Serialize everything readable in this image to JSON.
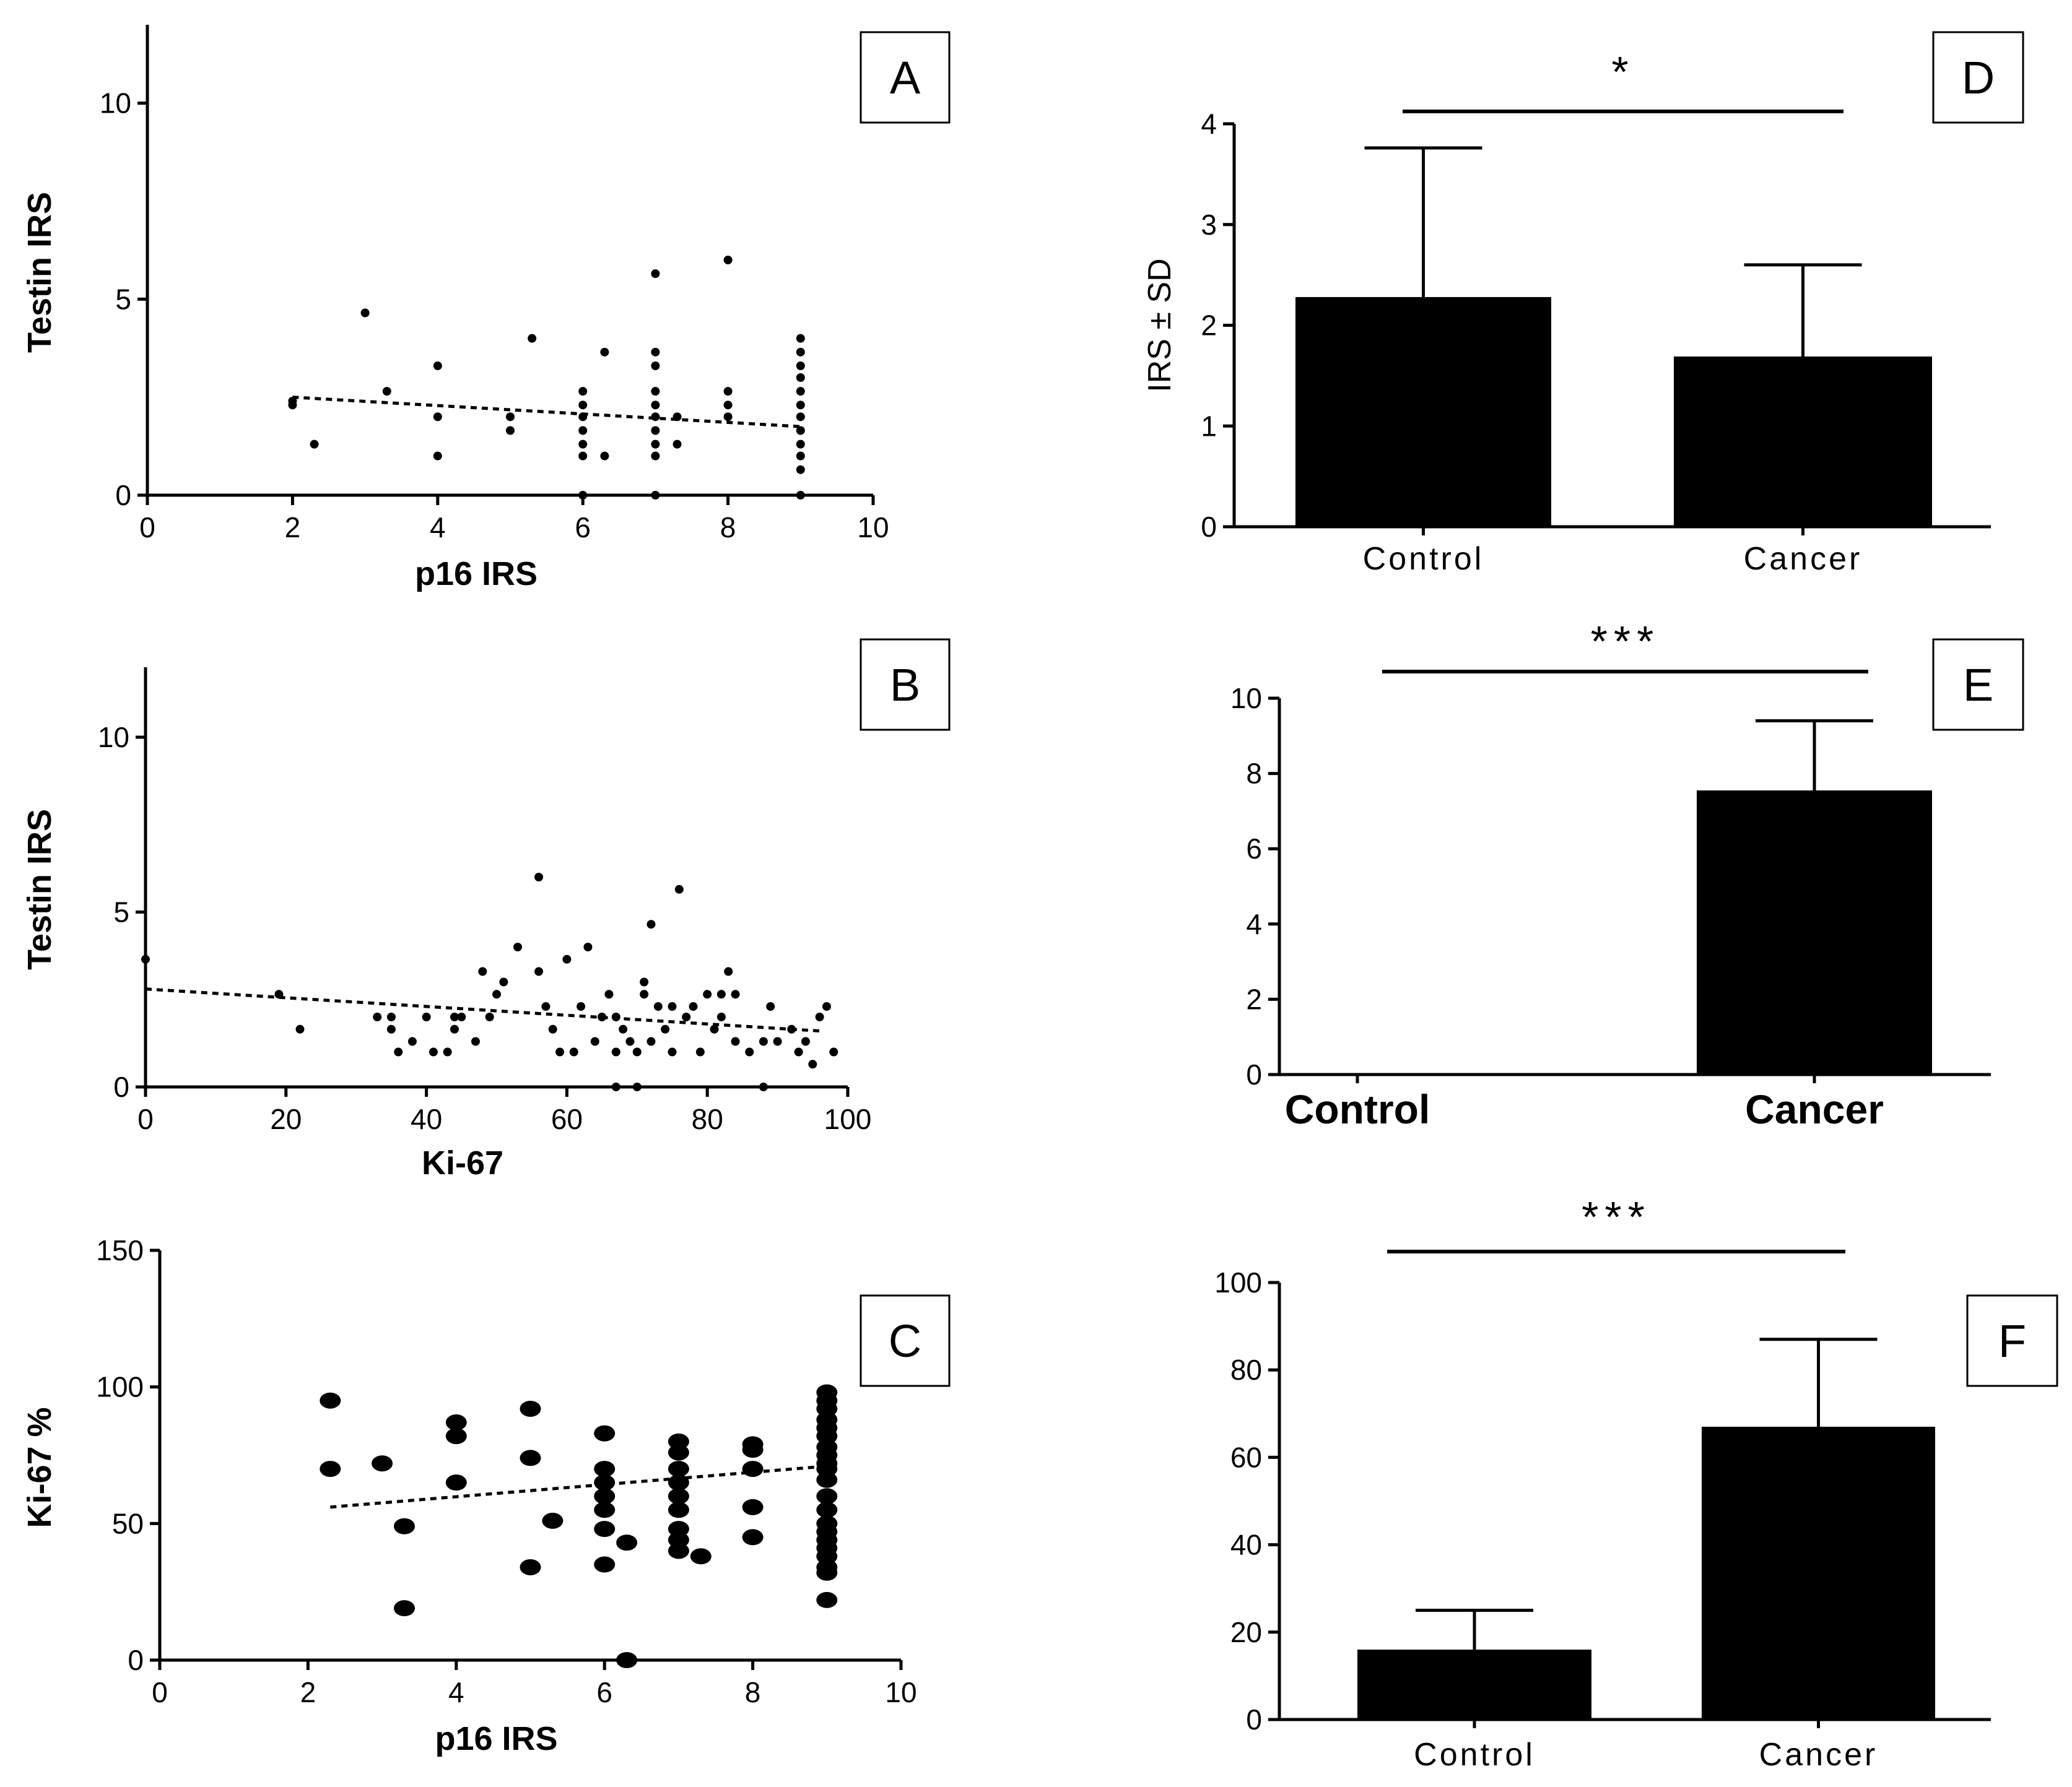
{
  "chart_data": [
    {
      "id": "A",
      "type": "scatter",
      "panel_label": "A",
      "xlabel": "p16 IRS",
      "ylabel": "Testin IRS",
      "xlim": [
        0,
        10
      ],
      "ylim": [
        0,
        12
      ],
      "xticks": [
        0,
        2,
        4,
        6,
        8,
        10
      ],
      "yticks": [
        0,
        5,
        10
      ],
      "trendline": [
        [
          2,
          2.5
        ],
        [
          9,
          1.75
        ]
      ],
      "points": [
        [
          2,
          2.3
        ],
        [
          2,
          2.4
        ],
        [
          2.3,
          1.3
        ],
        [
          3,
          4.65
        ],
        [
          3.3,
          2.65
        ],
        [
          4,
          3.3
        ],
        [
          4,
          2.0
        ],
        [
          4,
          1.0
        ],
        [
          5,
          1.65
        ],
        [
          5,
          2.0
        ],
        [
          5.3,
          4.0
        ],
        [
          6,
          2.65
        ],
        [
          6,
          2.3
        ],
        [
          6,
          2.0
        ],
        [
          6,
          1.65
        ],
        [
          6,
          1.3
        ],
        [
          6,
          1.0
        ],
        [
          6,
          0.0
        ],
        [
          6.3,
          3.65
        ],
        [
          6.3,
          1.0
        ],
        [
          7,
          5.65
        ],
        [
          7,
          3.65
        ],
        [
          7,
          3.3
        ],
        [
          7,
          2.65
        ],
        [
          7,
          2.3
        ],
        [
          7,
          2.0
        ],
        [
          7,
          1.65
        ],
        [
          7,
          1.3
        ],
        [
          7,
          1.0
        ],
        [
          7,
          0.0
        ],
        [
          7.3,
          2.0
        ],
        [
          7.3,
          1.3
        ],
        [
          8,
          6.0
        ],
        [
          8,
          2.65
        ],
        [
          8,
          2.3
        ],
        [
          8,
          2.0
        ],
        [
          9,
          4.0
        ],
        [
          9,
          3.65
        ],
        [
          9,
          3.3
        ],
        [
          9,
          3.0
        ],
        [
          9,
          2.65
        ],
        [
          9,
          2.3
        ],
        [
          9,
          2.0
        ],
        [
          9,
          1.65
        ],
        [
          9,
          1.3
        ],
        [
          9,
          1.0
        ],
        [
          9,
          0.65
        ],
        [
          9,
          0.0
        ]
      ]
    },
    {
      "id": "B",
      "type": "scatter",
      "panel_label": "B",
      "xlabel": "Ki-67",
      "ylabel": "Testin IRS",
      "xlim": [
        0,
        100
      ],
      "ylim": [
        0,
        12
      ],
      "xticks": [
        0,
        20,
        40,
        60,
        80,
        100
      ],
      "yticks": [
        0,
        5,
        10
      ],
      "trendline": [
        [
          0,
          2.8
        ],
        [
          96,
          1.6
        ]
      ],
      "points": [
        [
          0,
          3.65
        ],
        [
          19,
          2.65
        ],
        [
          22,
          1.65
        ],
        [
          33,
          2.0
        ],
        [
          35,
          2.0
        ],
        [
          35,
          1.65
        ],
        [
          36,
          1.0
        ],
        [
          38,
          1.3
        ],
        [
          40,
          2.0
        ],
        [
          41,
          1.0
        ],
        [
          43,
          1.0
        ],
        [
          44,
          2.0
        ],
        [
          44,
          1.65
        ],
        [
          45,
          2.0
        ],
        [
          47,
          1.3
        ],
        [
          48,
          3.3
        ],
        [
          49,
          2.0
        ],
        [
          50,
          2.65
        ],
        [
          51,
          3.0
        ],
        [
          53,
          4.0
        ],
        [
          56,
          6.0
        ],
        [
          56,
          3.3
        ],
        [
          57,
          2.3
        ],
        [
          58,
          1.65
        ],
        [
          59,
          1.0
        ],
        [
          60,
          3.65
        ],
        [
          61,
          1.0
        ],
        [
          62,
          2.3
        ],
        [
          63,
          4.0
        ],
        [
          64,
          1.3
        ],
        [
          65,
          2.0
        ],
        [
          66,
          2.65
        ],
        [
          67,
          2.0
        ],
        [
          67,
          1.0
        ],
        [
          67,
          0.0
        ],
        [
          68,
          1.65
        ],
        [
          69,
          1.3
        ],
        [
          70,
          1.0
        ],
        [
          70,
          0.0
        ],
        [
          71,
          2.65
        ],
        [
          71,
          3.0
        ],
        [
          72,
          4.65
        ],
        [
          72,
          1.3
        ],
        [
          73,
          2.3
        ],
        [
          74,
          1.65
        ],
        [
          75,
          2.3
        ],
        [
          75,
          1.0
        ],
        [
          76,
          5.65
        ],
        [
          77,
          2.0
        ],
        [
          78,
          2.3
        ],
        [
          79,
          1.0
        ],
        [
          80,
          2.65
        ],
        [
          81,
          1.65
        ],
        [
          82,
          2.65
        ],
        [
          82,
          2.0
        ],
        [
          83,
          3.3
        ],
        [
          84,
          2.65
        ],
        [
          84,
          1.3
        ],
        [
          86,
          1.0
        ],
        [
          88,
          1.3
        ],
        [
          88,
          0.0
        ],
        [
          89,
          2.3
        ],
        [
          90,
          1.3
        ],
        [
          92,
          1.65
        ],
        [
          93,
          1.0
        ],
        [
          94,
          1.3
        ],
        [
          95,
          0.65
        ],
        [
          96,
          2.0
        ],
        [
          97,
          2.3
        ],
        [
          98,
          1.0
        ]
      ]
    },
    {
      "id": "C",
      "type": "scatter",
      "panel_label": "C",
      "xlabel": "p16 IRS",
      "ylabel": "Ki-67 %",
      "xlim": [
        0,
        10
      ],
      "ylim": [
        0,
        150
      ],
      "xticks": [
        0,
        2,
        4,
        6,
        8,
        10
      ],
      "yticks": [
        0,
        50,
        100,
        150
      ],
      "trendline": [
        [
          2.3,
          56
        ],
        [
          9,
          71
        ]
      ],
      "points": [
        [
          2.3,
          95
        ],
        [
          2.3,
          70
        ],
        [
          3,
          72
        ],
        [
          3.3,
          49
        ],
        [
          3.3,
          19
        ],
        [
          4,
          87
        ],
        [
          4,
          82
        ],
        [
          4,
          65
        ],
        [
          5,
          92
        ],
        [
          5,
          74
        ],
        [
          5,
          34
        ],
        [
          5.3,
          51
        ],
        [
          6,
          83
        ],
        [
          6,
          70
        ],
        [
          6,
          65
        ],
        [
          6,
          60
        ],
        [
          6,
          55
        ],
        [
          6,
          48
        ],
        [
          6,
          35
        ],
        [
          6.3,
          43
        ],
        [
          6.3,
          0
        ],
        [
          7,
          80
        ],
        [
          7,
          76
        ],
        [
          7,
          70
        ],
        [
          7,
          65
        ],
        [
          7,
          60
        ],
        [
          7,
          55
        ],
        [
          7,
          48
        ],
        [
          7,
          44
        ],
        [
          7,
          40
        ],
        [
          7.3,
          38
        ],
        [
          8,
          79
        ],
        [
          8,
          77
        ],
        [
          8,
          70
        ],
        [
          8,
          56
        ],
        [
          8,
          45
        ],
        [
          9,
          98
        ],
        [
          9,
          95
        ],
        [
          9,
          92
        ],
        [
          9,
          88
        ],
        [
          9,
          85
        ],
        [
          9,
          82
        ],
        [
          9,
          78
        ],
        [
          9,
          75
        ],
        [
          9,
          72
        ],
        [
          9,
          70
        ],
        [
          9,
          66
        ],
        [
          9,
          60
        ],
        [
          9,
          55
        ],
        [
          9,
          50
        ],
        [
          9,
          47
        ],
        [
          9,
          44
        ],
        [
          9,
          41
        ],
        [
          9,
          38
        ],
        [
          9,
          34
        ],
        [
          9,
          32
        ],
        [
          9,
          22
        ]
      ]
    },
    {
      "id": "D",
      "type": "bar",
      "panel_label": "D",
      "ylabel": "IRS ± SD",
      "categories": [
        "Control",
        "Cancer"
      ],
      "values": [
        2.28,
        1.69
      ],
      "errors": [
        1.48,
        0.91
      ],
      "ylim": [
        0,
        4
      ],
      "yticks": [
        0,
        1,
        2,
        3,
        4
      ],
      "significance": "*"
    },
    {
      "id": "E",
      "type": "bar",
      "panel_label": "E",
      "ylabel": "",
      "categories": [
        "Control",
        "Cancer"
      ],
      "values": [
        0,
        7.55
      ],
      "errors": [
        0,
        1.85
      ],
      "ylim": [
        0,
        10
      ],
      "yticks": [
        0,
        2,
        4,
        6,
        8,
        10
      ],
      "significance": "***"
    },
    {
      "id": "F",
      "type": "bar",
      "panel_label": "F",
      "ylabel": "",
      "categories": [
        "Control",
        "Cancer"
      ],
      "values": [
        16,
        67
      ],
      "errors": [
        9,
        20
      ],
      "ylim": [
        0,
        100
      ],
      "yticks": [
        0,
        20,
        40,
        60,
        80,
        100
      ],
      "significance": "***"
    }
  ]
}
